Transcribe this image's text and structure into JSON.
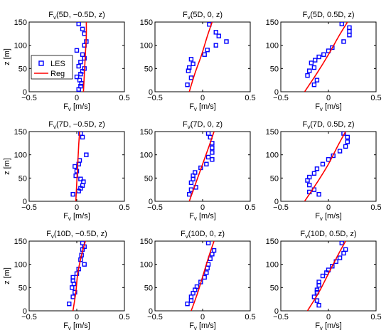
{
  "chart_data": [
    {
      "type": "scatter",
      "title_main": "F",
      "title_sub": "v",
      "title_rest": "(5D, −0.5D, z)",
      "xlabel_main": "F",
      "xlabel_sub": "v",
      "xlabel_rest": " [m/s]",
      "ylabel": "z [m]",
      "xlim": [
        -0.5,
        0.5
      ],
      "ylim": [
        0,
        150
      ],
      "xticks": [
        "−0.5",
        "0",
        "0.5"
      ],
      "yticks": [
        "0",
        "50",
        "100",
        "150"
      ],
      "legend": {
        "entries": [
          "LES",
          "Reg"
        ],
        "placement": "center-left"
      },
      "series": [
        {
          "name": "LES",
          "kind": "markers",
          "x": [
            0.02,
            0.06,
            0.08,
            0.1,
            0.08,
            0.0,
            0.06,
            0.08,
            0.04,
            0.02,
            0.08,
            0.06,
            0.04,
            0.0,
            0.03,
            0.05,
            0.04,
            0.02
          ],
          "y": [
            146,
            135,
            125,
            108,
            100,
            89,
            80,
            72,
            64,
            55,
            50,
            44,
            38,
            32,
            25,
            18,
            12,
            5
          ]
        },
        {
          "name": "Reg",
          "kind": "line",
          "x": [
            0.07,
            0.08,
            0.09,
            0.1,
            0.1
          ],
          "y": [
            0,
            40,
            80,
            120,
            150
          ]
        }
      ]
    },
    {
      "type": "scatter",
      "title_main": "F",
      "title_sub": "v",
      "title_rest": "(5D, 0, z)",
      "xlabel_main": "F",
      "xlabel_sub": "v",
      "xlabel_rest": " [m/s]",
      "ylabel": "",
      "xlim": [
        -0.5,
        0.5
      ],
      "ylim": [
        0,
        150
      ],
      "xticks": [
        "−0.5",
        "0",
        "0.5"
      ],
      "yticks": [
        "0",
        "50",
        "100",
        "150"
      ],
      "series": [
        {
          "name": "LES",
          "kind": "markers",
          "x": [
            0.07,
            0.14,
            0.17,
            0.25,
            0.05,
            0.14,
            0.02,
            -0.12,
            -0.1,
            -0.14,
            -0.15,
            -0.12,
            -0.16
          ],
          "y": [
            145,
            128,
            120,
            108,
            90,
            100,
            80,
            70,
            60,
            52,
            45,
            30,
            15
          ]
        },
        {
          "name": "Reg",
          "kind": "line",
          "x": [
            -0.14,
            -0.08,
            -0.01,
            0.05,
            0.1
          ],
          "y": [
            0,
            40,
            80,
            120,
            150
          ]
        }
      ]
    },
    {
      "type": "scatter",
      "title_main": "F",
      "title_sub": "v",
      "title_rest": "(5D, 0.5D, z)",
      "xlabel_main": "F",
      "xlabel_sub": "v",
      "xlabel_rest": " [m/s]",
      "ylabel": "",
      "xlim": [
        -0.5,
        0.5
      ],
      "ylim": [
        0,
        150
      ],
      "xticks": [
        "−0.5",
        "0",
        "0.5"
      ],
      "yticks": [
        "0",
        "50",
        "100",
        "150"
      ],
      "series": [
        {
          "name": "LES",
          "kind": "markers",
          "x": [
            0.14,
            0.22,
            0.22,
            0.22,
            0.16,
            0.04,
            0.0,
            -0.05,
            -0.1,
            -0.14,
            -0.18,
            -0.15,
            -0.2,
            -0.22,
            -0.12,
            -0.15
          ],
          "y": [
            146,
            138,
            130,
            122,
            108,
            95,
            88,
            80,
            75,
            68,
            62,
            52,
            45,
            35,
            25,
            15
          ]
        },
        {
          "name": "Reg",
          "kind": "line",
          "x": [
            -0.25,
            -0.12,
            0.0,
            0.11,
            0.2
          ],
          "y": [
            0,
            40,
            80,
            120,
            150
          ]
        }
      ]
    },
    {
      "type": "scatter",
      "title_main": "F",
      "title_sub": "v",
      "title_rest": "(7D, −0.5D, z)",
      "xlabel_main": "F",
      "xlabel_sub": "v",
      "xlabel_rest": " [m/s]",
      "ylabel": "z [m]",
      "xlim": [
        -0.5,
        0.5
      ],
      "ylim": [
        0,
        150
      ],
      "xticks": [
        "−0.5",
        "0",
        "0.5"
      ],
      "yticks": [
        "0",
        "50",
        "100",
        "150"
      ],
      "series": [
        {
          "name": "LES",
          "kind": "markers",
          "x": [
            0.04,
            0.06,
            0.1,
            0.03,
            0.02,
            -0.02,
            0.0,
            -0.01,
            0.04,
            0.07,
            0.06,
            0.04,
            0.02,
            -0.04
          ],
          "y": [
            146,
            138,
            100,
            88,
            80,
            75,
            65,
            55,
            48,
            42,
            34,
            28,
            22,
            15
          ]
        },
        {
          "name": "Reg",
          "kind": "line",
          "x": [
            -0.01,
            0.0,
            0.01,
            0.02,
            0.03
          ],
          "y": [
            0,
            40,
            80,
            120,
            150
          ]
        }
      ]
    },
    {
      "type": "scatter",
      "title_main": "F",
      "title_sub": "v",
      "title_rest": "(7D, 0, z)",
      "xlabel_main": "F",
      "xlabel_sub": "v",
      "xlabel_rest": " [m/s]",
      "ylabel": "",
      "xlim": [
        -0.5,
        0.5
      ],
      "ylim": [
        0,
        150
      ],
      "xticks": [
        "−0.5",
        "0",
        "0.5"
      ],
      "yticks": [
        "0",
        "50",
        "100",
        "150"
      ],
      "series": [
        {
          "name": "LES",
          "kind": "markers",
          "x": [
            0.06,
            0.08,
            0.1,
            0.1,
            0.1,
            0.06,
            0.1,
            0.04,
            -0.02,
            -0.08,
            -0.1,
            -0.1,
            -0.12,
            -0.07,
            -0.14,
            -0.12
          ],
          "y": [
            146,
            138,
            125,
            115,
            105,
            95,
            90,
            80,
            72,
            62,
            55,
            48,
            40,
            30,
            15,
            25
          ]
        },
        {
          "name": "Reg",
          "kind": "line",
          "x": [
            -0.14,
            -0.07,
            0.0,
            0.07,
            0.12
          ],
          "y": [
            0,
            40,
            80,
            120,
            150
          ]
        }
      ]
    },
    {
      "type": "scatter",
      "title_main": "F",
      "title_sub": "v",
      "title_rest": "(7D, 0.5D, z)",
      "xlabel_main": "F",
      "xlabel_sub": "v",
      "xlabel_rest": " [m/s]",
      "ylabel": "",
      "xlim": [
        -0.5,
        0.5
      ],
      "ylim": [
        0,
        150
      ],
      "xticks": [
        "−0.5",
        "0",
        "0.5"
      ],
      "yticks": [
        "0",
        "50",
        "100",
        "150"
      ],
      "series": [
        {
          "name": "LES",
          "kind": "markers",
          "x": [
            0.16,
            0.2,
            0.2,
            0.18,
            0.12,
            0.05,
            0.0,
            -0.06,
            -0.12,
            -0.15,
            -0.2,
            -0.22,
            -0.2,
            -0.15,
            -0.2,
            -0.1
          ],
          "y": [
            146,
            138,
            128,
            118,
            108,
            98,
            90,
            80,
            70,
            60,
            52,
            45,
            35,
            25,
            20,
            15
          ]
        },
        {
          "name": "Reg",
          "kind": "line",
          "x": [
            -0.25,
            -0.12,
            0.0,
            0.1,
            0.18
          ],
          "y": [
            0,
            40,
            80,
            120,
            150
          ]
        }
      ]
    },
    {
      "type": "scatter",
      "title_main": "F",
      "title_sub": "v",
      "title_rest": "(10D, −0.5D, z)",
      "xlabel_main": "F",
      "xlabel_sub": "v",
      "xlabel_rest": " [m/s]",
      "ylabel": "z [m]",
      "xlim": [
        -0.5,
        0.5
      ],
      "ylim": [
        0,
        150
      ],
      "xticks": [
        "−0.5",
        "0",
        "0.5"
      ],
      "yticks": [
        "0",
        "50",
        "100",
        "150"
      ],
      "series": [
        {
          "name": "LES",
          "kind": "markers",
          "x": [
            0.06,
            0.08,
            0.06,
            0.05,
            0.04,
            0.08,
            0.02,
            0.0,
            -0.04,
            -0.04,
            -0.03,
            -0.05,
            -0.02,
            -0.04,
            -0.08
          ],
          "y": [
            146,
            138,
            132,
            120,
            110,
            100,
            90,
            80,
            72,
            65,
            58,
            50,
            40,
            30,
            15
          ]
        },
        {
          "name": "Reg",
          "kind": "line",
          "x": [
            -0.04,
            -0.01,
            0.01,
            0.05,
            0.09
          ],
          "y": [
            0,
            40,
            80,
            120,
            150
          ]
        }
      ]
    },
    {
      "type": "scatter",
      "title_main": "F",
      "title_sub": "v",
      "title_rest": "(10D, 0, z)",
      "xlabel_main": "F",
      "xlabel_sub": "v",
      "xlabel_rest": " [m/s]",
      "ylabel": "",
      "xlim": [
        -0.5,
        0.5
      ],
      "ylim": [
        0,
        150
      ],
      "xticks": [
        "−0.5",
        "0",
        "0.5"
      ],
      "yticks": [
        "0",
        "50",
        "100",
        "150"
      ],
      "series": [
        {
          "name": "LES",
          "kind": "markers",
          "x": [
            0.06,
            0.12,
            0.1,
            0.08,
            0.06,
            0.05,
            0.04,
            0.02,
            -0.02,
            -0.06,
            -0.08,
            -0.1,
            -0.12,
            -0.16,
            -0.12
          ],
          "y": [
            146,
            130,
            122,
            112,
            100,
            92,
            82,
            72,
            62,
            52,
            45,
            38,
            30,
            15,
            22
          ]
        },
        {
          "name": "Reg",
          "kind": "line",
          "x": [
            -0.12,
            -0.05,
            0.01,
            0.07,
            0.12
          ],
          "y": [
            0,
            40,
            80,
            120,
            150
          ]
        }
      ]
    },
    {
      "type": "scatter",
      "title_main": "F",
      "title_sub": "v",
      "title_rest": "(10D, 0.5D, z)",
      "xlabel_main": "F",
      "xlabel_sub": "v",
      "xlabel_rest": " [m/s]",
      "ylabel": "",
      "xlim": [
        -0.5,
        0.5
      ],
      "ylim": [
        0,
        150
      ],
      "xticks": [
        "−0.5",
        "0",
        "0.5"
      ],
      "yticks": [
        "0",
        "50",
        "100",
        "150"
      ],
      "series": [
        {
          "name": "LES",
          "kind": "markers",
          "x": [
            0.14,
            0.18,
            0.16,
            0.12,
            0.08,
            0.04,
            0.0,
            -0.02,
            -0.06,
            -0.1,
            -0.1,
            -0.12,
            -0.12,
            -0.15,
            -0.12,
            -0.1
          ],
          "y": [
            146,
            132,
            124,
            114,
            106,
            96,
            88,
            82,
            75,
            62,
            55,
            45,
            40,
            30,
            22,
            12
          ]
        },
        {
          "name": "Reg",
          "kind": "line",
          "x": [
            -0.22,
            -0.1,
            0.0,
            0.1,
            0.18
          ],
          "y": [
            0,
            40,
            80,
            120,
            150
          ]
        }
      ]
    }
  ]
}
